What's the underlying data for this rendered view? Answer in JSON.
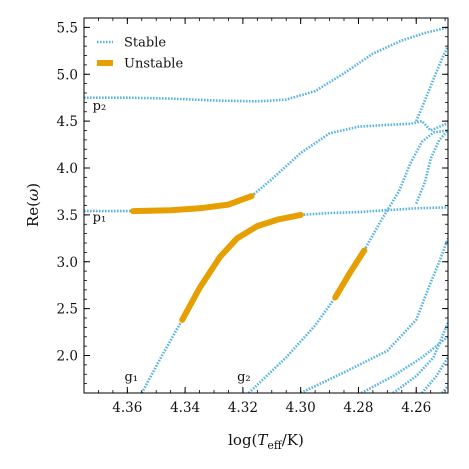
{
  "chart_data": {
    "type": "line",
    "xlabel": "log(T_eff/K)",
    "ylabel": "Re(ω)",
    "xlim": [
      4.375,
      4.249
    ],
    "ylim": [
      1.6,
      5.6
    ],
    "x_reversed": true,
    "xticks": [
      4.36,
      4.34,
      4.32,
      4.3,
      4.28,
      4.26
    ],
    "xtick_labels": [
      "4.36",
      "4.34",
      "4.32",
      "4.30",
      "4.28",
      "4.26"
    ],
    "yticks": [
      2.0,
      2.5,
      3.0,
      3.5,
      4.0,
      4.5,
      5.0,
      5.5
    ],
    "ytick_labels": [
      "2.0",
      "2.5",
      "3.0",
      "3.5",
      "4.0",
      "4.5",
      "5.0",
      "5.5"
    ],
    "legend": {
      "placement": "top-left",
      "entries": [
        {
          "label": "Stable",
          "color": "#5ab4e2",
          "style": "dotted-thin"
        },
        {
          "label": "Unstable",
          "color": "#e69f00",
          "style": "thick"
        }
      ]
    },
    "colors": {
      "stable": "#5ab4e2",
      "unstable": "#e69f00",
      "axes": "#000000"
    },
    "annotations": [
      {
        "text": "p₂",
        "x": 4.372,
        "y": 4.62
      },
      {
        "text": "p₁",
        "x": 4.372,
        "y": 3.43
      },
      {
        "text": "g₁",
        "x": 4.361,
        "y": 1.73
      },
      {
        "text": "g₂",
        "x": 4.322,
        "y": 1.73
      }
    ],
    "series": [
      {
        "status": "stable",
        "points": [
          [
            4.375,
            4.75
          ],
          [
            4.36,
            4.75
          ],
          [
            4.345,
            4.74
          ],
          [
            4.33,
            4.72
          ],
          [
            4.315,
            4.71
          ],
          [
            4.305,
            4.73
          ],
          [
            4.295,
            4.82
          ],
          [
            4.285,
            5.01
          ],
          [
            4.275,
            5.22
          ],
          [
            4.265,
            5.36
          ],
          [
            4.257,
            5.44
          ],
          [
            4.249,
            5.5
          ]
        ]
      },
      {
        "status": "stable",
        "points": [
          [
            4.26,
            4.5
          ],
          [
            4.257,
            4.72
          ],
          [
            4.254,
            4.95
          ],
          [
            4.251,
            5.17
          ],
          [
            4.249,
            5.3
          ]
        ]
      },
      {
        "status": "stable",
        "points": [
          [
            4.375,
            3.54
          ],
          [
            4.358,
            3.54
          ]
        ]
      },
      {
        "status": "unstable",
        "points": [
          [
            4.358,
            3.54
          ],
          [
            4.345,
            3.55
          ],
          [
            4.335,
            3.57
          ],
          [
            4.325,
            3.61
          ],
          [
            4.317,
            3.7
          ]
        ]
      },
      {
        "status": "stable",
        "points": [
          [
            4.317,
            3.7
          ],
          [
            4.31,
            3.88
          ],
          [
            4.3,
            4.16
          ],
          [
            4.29,
            4.37
          ],
          [
            4.28,
            4.44
          ],
          [
            4.27,
            4.46
          ],
          [
            4.262,
            4.47
          ],
          [
            4.258,
            4.5
          ],
          [
            4.255,
            4.4
          ],
          [
            4.249,
            4.48
          ]
        ]
      },
      {
        "status": "stable",
        "points": [
          [
            4.26,
            3.62
          ],
          [
            4.257,
            3.85
          ],
          [
            4.255,
            4.1
          ],
          [
            4.252,
            4.3
          ],
          [
            4.249,
            4.4
          ]
        ]
      },
      {
        "status": "stable",
        "points": [
          [
            4.355,
            1.6
          ],
          [
            4.348,
            2.0
          ],
          [
            4.341,
            2.38
          ]
        ]
      },
      {
        "status": "unstable",
        "points": [
          [
            4.341,
            2.38
          ],
          [
            4.335,
            2.72
          ],
          [
            4.328,
            3.05
          ],
          [
            4.322,
            3.25
          ],
          [
            4.315,
            3.38
          ],
          [
            4.308,
            3.45
          ],
          [
            4.3,
            3.5
          ]
        ]
      },
      {
        "status": "stable",
        "points": [
          [
            4.3,
            3.5
          ],
          [
            4.29,
            3.52
          ],
          [
            4.28,
            3.53
          ],
          [
            4.27,
            3.55
          ],
          [
            4.26,
            3.57
          ],
          [
            4.249,
            3.58
          ]
        ]
      },
      {
        "status": "stable",
        "points": [
          [
            4.318,
            1.6
          ],
          [
            4.305,
            1.98
          ],
          [
            4.295,
            2.32
          ],
          [
            4.288,
            2.62
          ]
        ]
      },
      {
        "status": "unstable",
        "points": [
          [
            4.288,
            2.62
          ],
          [
            4.283,
            2.88
          ],
          [
            4.278,
            3.12
          ]
        ]
      },
      {
        "status": "stable",
        "points": [
          [
            4.278,
            3.12
          ],
          [
            4.272,
            3.45
          ],
          [
            4.266,
            3.75
          ],
          [
            4.262,
            4.05
          ],
          [
            4.258,
            4.28
          ],
          [
            4.254,
            4.38
          ],
          [
            4.249,
            4.4
          ]
        ]
      },
      {
        "status": "stable",
        "points": [
          [
            4.3,
            1.6
          ],
          [
            4.285,
            1.82
          ],
          [
            4.27,
            2.05
          ],
          [
            4.26,
            2.38
          ],
          [
            4.255,
            2.78
          ],
          [
            4.252,
            3.0
          ],
          [
            4.249,
            3.25
          ]
        ]
      },
      {
        "status": "stable",
        "points": [
          [
            4.279,
            1.6
          ],
          [
            4.268,
            1.78
          ],
          [
            4.258,
            1.98
          ],
          [
            4.249,
            2.2
          ]
        ]
      },
      {
        "status": "stable",
        "points": [
          [
            4.268,
            1.6
          ],
          [
            4.26,
            1.78
          ],
          [
            4.254,
            1.98
          ],
          [
            4.249,
            2.35
          ]
        ]
      },
      {
        "status": "stable",
        "points": [
          [
            4.258,
            1.6
          ],
          [
            4.253,
            1.78
          ],
          [
            4.249,
            1.98
          ]
        ]
      },
      {
        "status": "stable",
        "points": [
          [
            4.251,
            1.6
          ],
          [
            4.249,
            1.68
          ]
        ]
      }
    ]
  }
}
